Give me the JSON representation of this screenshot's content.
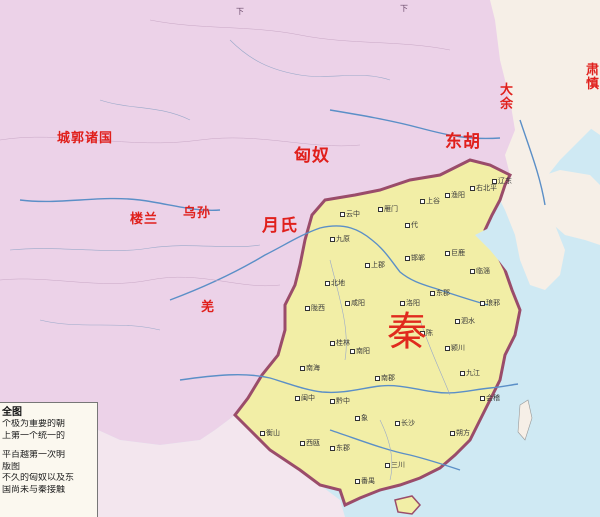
{
  "map": {
    "region_labels": [
      {
        "id": "qin",
        "text": "秦"
      },
      {
        "id": "xiongnu",
        "text": "匈奴"
      },
      {
        "id": "donghu",
        "text": "东胡"
      },
      {
        "id": "yuezhi",
        "text": "月氏"
      },
      {
        "id": "wusun",
        "text": "乌孙"
      },
      {
        "id": "loulan",
        "text": "楼兰"
      },
      {
        "id": "qiang",
        "text": "羌"
      },
      {
        "id": "xiyu",
        "text": "城郭诸国"
      },
      {
        "id": "dayu",
        "text": "大余"
      },
      {
        "id": "sushen",
        "text": "肃慎"
      }
    ],
    "cities": [
      "咸阳",
      "陇西",
      "北地",
      "上郡",
      "九原",
      "云中",
      "雁门",
      "代",
      "邯郸",
      "巨鹿",
      "上谷",
      "渔阳",
      "右北平",
      "辽西",
      "辽东",
      "临淄",
      "琅邪",
      "薛",
      "砀",
      "陈",
      "颍川",
      "南阳",
      "南郡",
      "长沙",
      "九江",
      "会稽",
      "鄣",
      "巴",
      "蜀",
      "汉中",
      "黔中",
      "闽中",
      "南海",
      "桂林",
      "象",
      "朔方",
      "洛阳",
      "三川",
      "东郡",
      "泗水",
      "衡山",
      "武都",
      "番禺",
      "西瓯"
    ],
    "colors": {
      "sea": "#cfe9f3",
      "xiongnu_land": "#ecd2e8",
      "qin_land": "#f2eea6",
      "qin_border": "#9a4c6a",
      "river": "#5b8fc7",
      "label_red": "#e0201c"
    }
  },
  "legend": {
    "title": "全图",
    "lines": [
      "个极为重要的朝",
      "上第一个统一的",
      "",
      "平百越第一次明",
      "版图",
      "不久的匈奴以及东",
      "国尚未与秦接触"
    ]
  },
  "margin_marks": [
    "下",
    "下"
  ]
}
